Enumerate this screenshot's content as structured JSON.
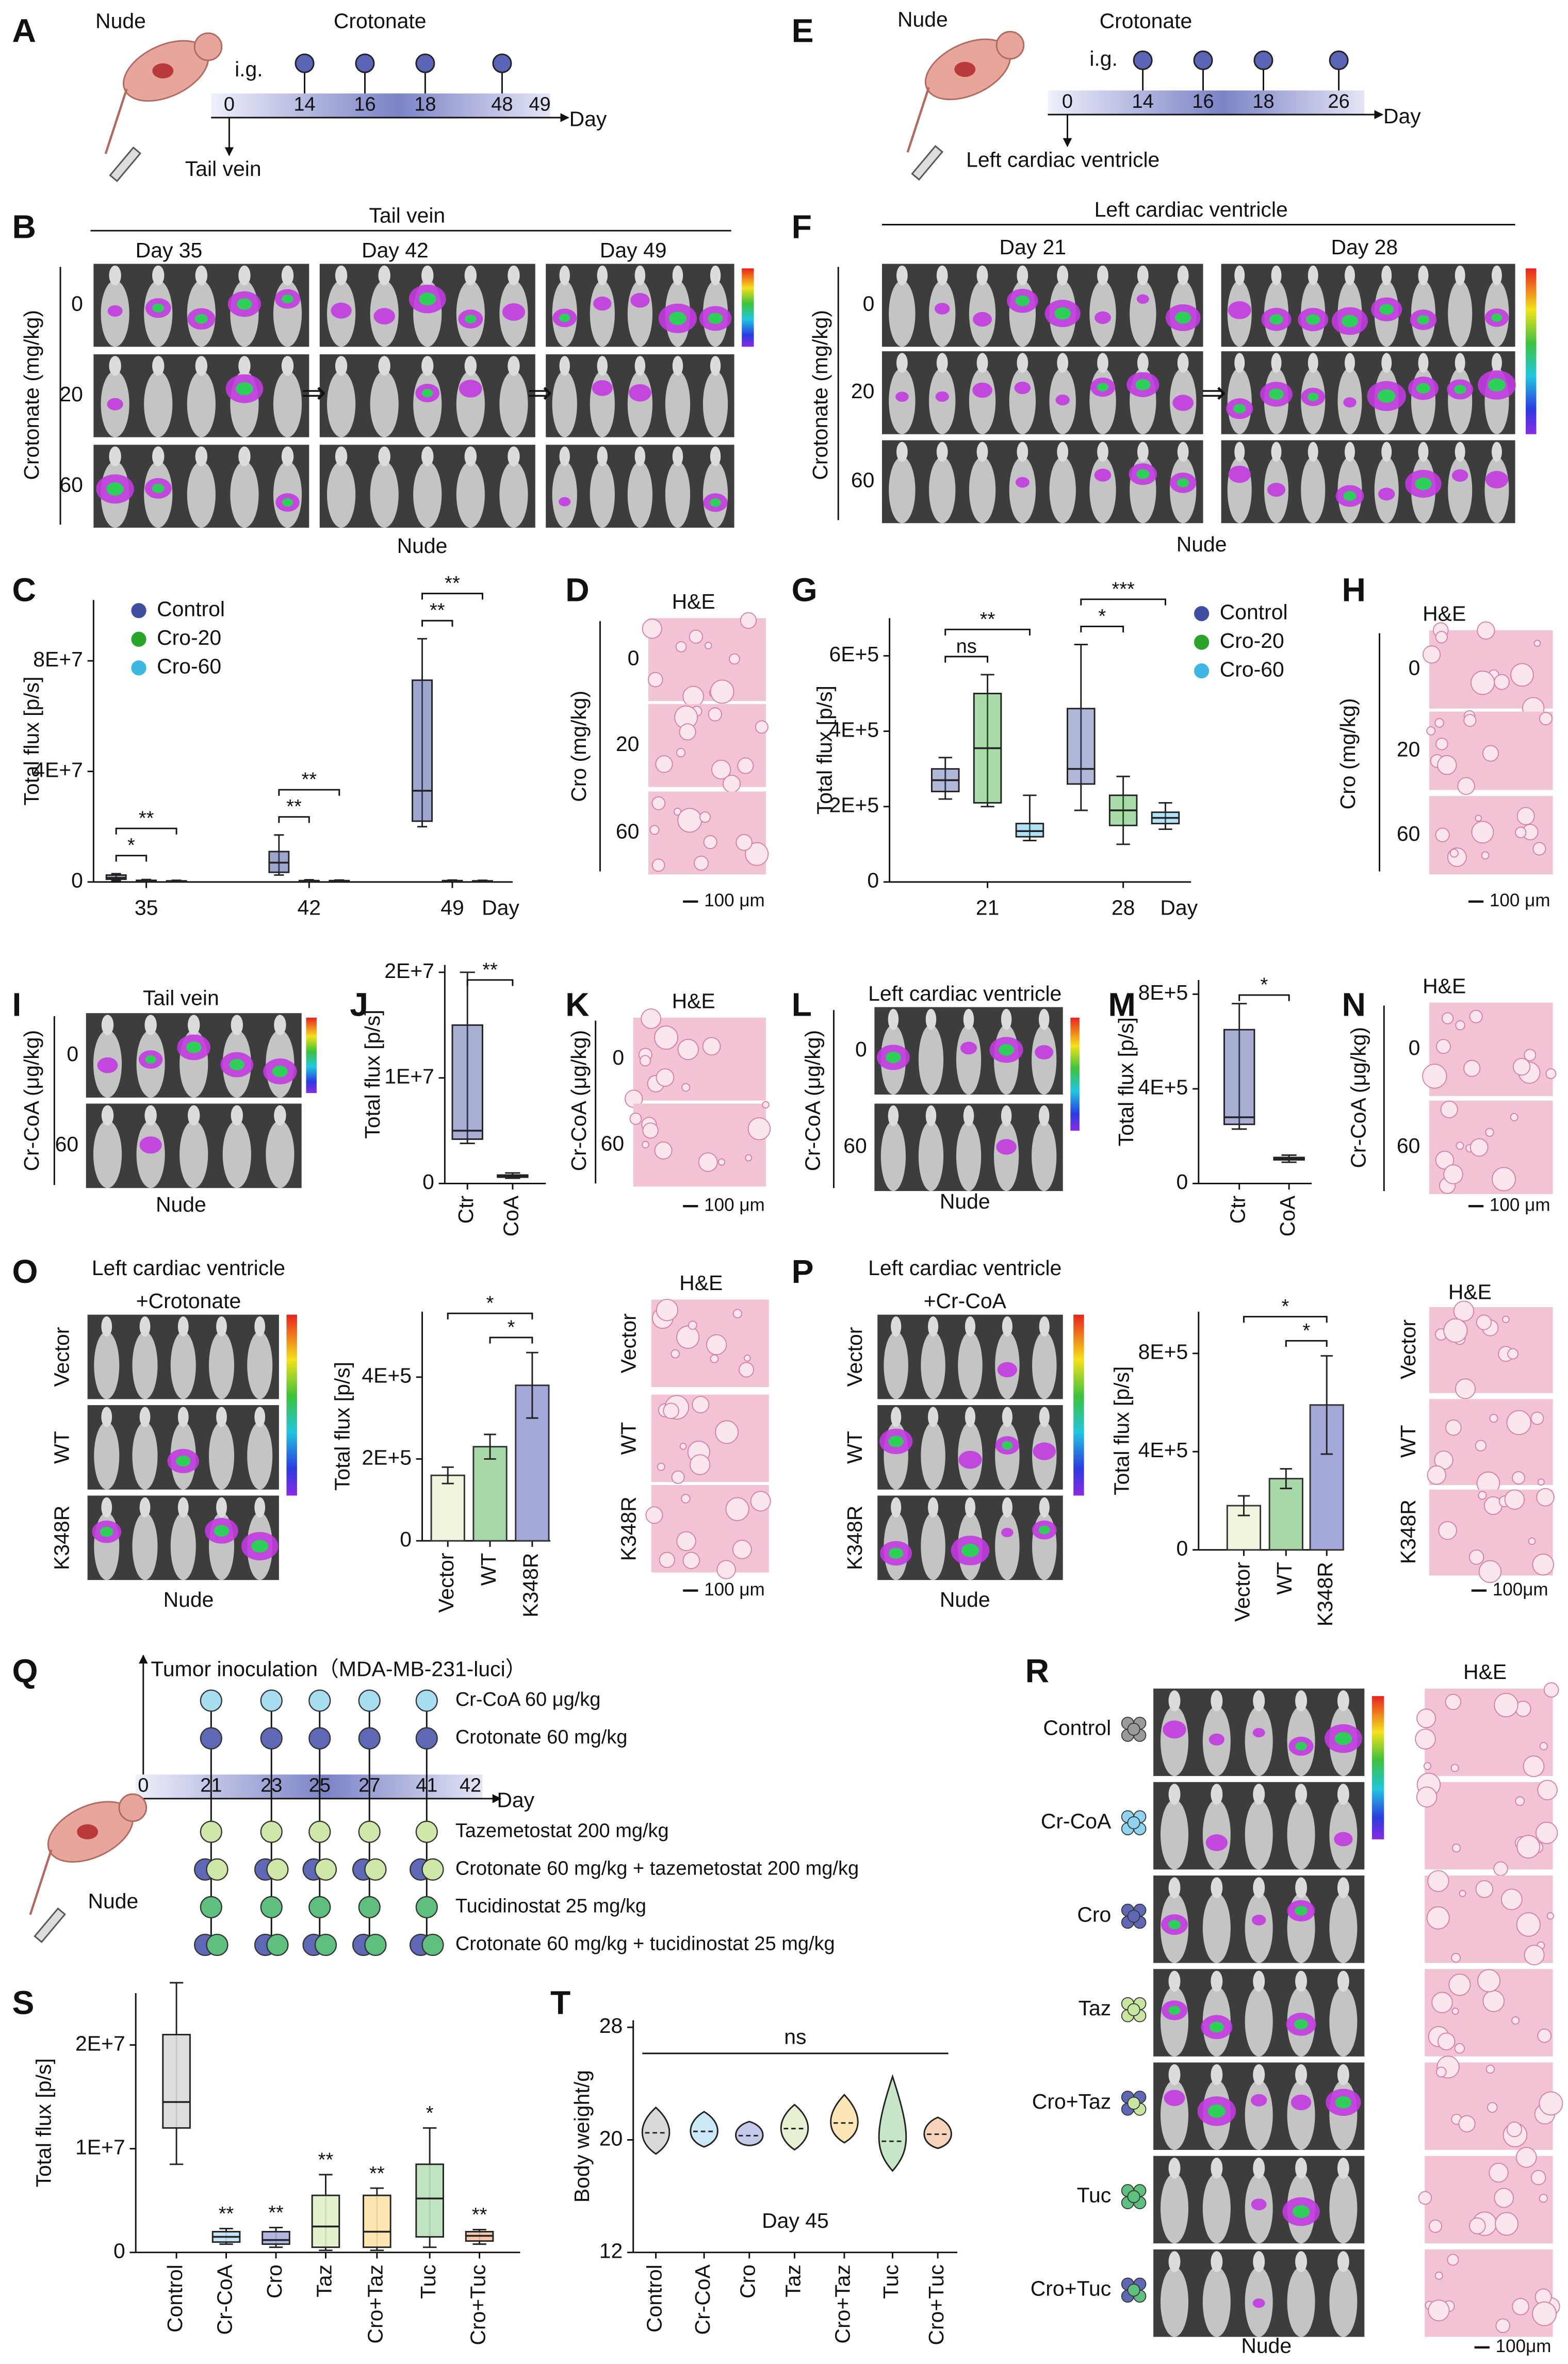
{
  "panels": {
    "A": {
      "letter": "A",
      "host": "Nude",
      "drug": "Crotonate",
      "route": "i.g.",
      "days": [
        0,
        14,
        16,
        18,
        48,
        49
      ],
      "unit": "Day",
      "injection": "Tail vein"
    },
    "B": {
      "letter": "B",
      "title": "Tail vein",
      "columns": [
        "Day 35",
        "Day 42",
        "Day 49"
      ],
      "ylabel": "Crotonate (mg/kg)",
      "rows": [
        0,
        20,
        60
      ],
      "arrow": "⇒",
      "host": "Nude"
    },
    "C": {
      "letter": "C",
      "type": "box",
      "ylabel": "Total flux [p/s]",
      "categories": [
        35,
        42,
        49
      ],
      "unit": "Day",
      "ylim": [
        0,
        102000000
      ],
      "yticks": [
        0,
        {
          "value": 40000000,
          "label": "4E+7"
        },
        {
          "value": 80000000,
          "label": "8E+7"
        }
      ],
      "series": [
        {
          "name": "Control",
          "color": "#3f4e9e",
          "boxes": [
            {
              "min": 500000,
              "q1": 1000000,
              "median": 1500000,
              "q3": 2500000,
              "max": 3000000
            },
            {
              "min": 2500000,
              "q1": 3500000,
              "median": 7000000,
              "q3": 11000000,
              "max": 17000000
            },
            {
              "min": 20000000,
              "q1": 22000000,
              "median": 33000000,
              "q3": 73000000,
              "max": 88000000
            }
          ]
        },
        {
          "name": "Cro-20",
          "color": "#2aa52a",
          "boxes": [
            {
              "min": 100000,
              "q1": 200000,
              "median": 400000,
              "q3": 600000,
              "max": 900000
            },
            {
              "min": 100000,
              "q1": 200000,
              "median": 300000,
              "q3": 500000,
              "max": 800000
            },
            {
              "min": 100000,
              "q1": 200000,
              "median": 300000,
              "q3": 500000,
              "max": 700000
            }
          ]
        },
        {
          "name": "Cro-60",
          "color": "#3fb7e3",
          "boxes": [
            {
              "min": 100000,
              "q1": 150000,
              "median": 250000,
              "q3": 400000,
              "max": 600000
            },
            {
              "min": 100000,
              "q1": 200000,
              "median": 350000,
              "q3": 500000,
              "max": 700000
            },
            {
              "min": 100000,
              "q1": 150000,
              "median": 250000,
              "q3": 400000,
              "max": 600000
            }
          ]
        }
      ],
      "significance": [
        "*",
        "**",
        "**",
        "**",
        "**",
        "**"
      ]
    },
    "D": {
      "letter": "D",
      "title": "H&E",
      "ylabel": "Cro (mg/kg)",
      "rows": [
        0,
        20,
        60
      ],
      "scale": "100 μm"
    },
    "E": {
      "letter": "E",
      "host": "Nude",
      "drug": "Crotonate",
      "route": "i.g.",
      "days": [
        0,
        14,
        16,
        18,
        26
      ],
      "unit": "Day",
      "injection": "Left cardiac ventricle"
    },
    "F": {
      "letter": "F",
      "title": "Left cardiac ventricle",
      "columns": [
        "Day 21",
        "Day 28"
      ],
      "ylabel": "Crotonate (mg/kg)",
      "rows": [
        0,
        20,
        60
      ],
      "arrow": "⇒",
      "host": "Nude"
    },
    "G": {
      "letter": "G",
      "type": "box",
      "ylabel": "Total flux [p/s]",
      "categories": [
        21,
        28
      ],
      "unit": "Day",
      "ylim": [
        0,
        700000
      ],
      "yticks": [
        0,
        {
          "value": 200000,
          "label": "2E+5"
        },
        {
          "value": 400000,
          "label": "4E+5"
        },
        {
          "value": 600000,
          "label": "6E+5"
        }
      ],
      "series": [
        {
          "name": "Control",
          "color": "#3f4e9e",
          "boxes": [
            {
              "min": 220000,
              "q1": 240000,
              "median": 270000,
              "q3": 300000,
              "max": 330000
            },
            {
              "min": 190000,
              "q1": 260000,
              "median": 300000,
              "q3": 460000,
              "max": 630000
            }
          ]
        },
        {
          "name": "Cro-20",
          "color": "#2aa52a",
          "boxes": [
            {
              "min": 200000,
              "q1": 210000,
              "median": 355000,
              "q3": 500000,
              "max": 550000
            },
            {
              "min": 100000,
              "q1": 150000,
              "median": 190000,
              "q3": 230000,
              "max": 280000
            }
          ]
        },
        {
          "name": "Cro-60",
          "color": "#3fb7e3",
          "boxes": [
            {
              "min": 110000,
              "q1": 120000,
              "median": 135000,
              "q3": 155000,
              "max": 230000
            },
            {
              "min": 140000,
              "q1": 155000,
              "median": 170000,
              "q3": 185000,
              "max": 210000
            }
          ]
        }
      ],
      "significance": [
        "ns",
        "**",
        "*",
        "***"
      ]
    },
    "H": {
      "letter": "H",
      "title": "H&E",
      "ylabel": "Cro (mg/kg)",
      "rows": [
        0,
        20,
        60
      ],
      "scale": "100 μm"
    },
    "I": {
      "letter": "I",
      "title": "Tail vein",
      "ylabel": "Cr-CoA (μg/kg)",
      "rows": [
        0,
        60
      ],
      "host": "Nude"
    },
    "J": {
      "letter": "J",
      "type": "box",
      "ylabel": "Total flux [p/s]",
      "categories": [
        "Ctr",
        "CoA"
      ],
      "ylim": [
        0,
        20700000
      ],
      "yticks": [
        0,
        {
          "value": 10000000,
          "label": "1E+7"
        },
        {
          "value": 20000000,
          "label": "2E+7"
        }
      ],
      "colors": [
        "#3f4e9e",
        "#2aa52a"
      ],
      "boxes": [
        {
          "min": 3800000,
          "q1": 4200000,
          "median": 5000000,
          "q3": 15000000,
          "max": 20000000
        },
        {
          "min": 500000,
          "q1": 600000,
          "median": 700000,
          "q3": 800000,
          "max": 1000000
        }
      ],
      "significance": [
        "**"
      ]
    },
    "K": {
      "letter": "K",
      "title": "H&E",
      "ylabel": "Cr-CoA (μg/kg)",
      "rows": [
        0,
        60
      ],
      "scale": "100 μm"
    },
    "L": {
      "letter": "L",
      "title": "Left cardiac ventricle",
      "ylabel": "Cr-CoA (μg/kg)",
      "rows": [
        0,
        60
      ],
      "host": "Nude"
    },
    "M": {
      "letter": "M",
      "type": "box",
      "ylabel": "Total flux [p/s]",
      "categories": [
        "Ctr",
        "CoA"
      ],
      "ylim": [
        0,
        860000
      ],
      "yticks": [
        0,
        {
          "value": 400000,
          "label": "4E+5"
        },
        {
          "value": 800000,
          "label": "8E+5"
        }
      ],
      "colors": [
        "#3f4e9e",
        "#2aa52a"
      ],
      "boxes": [
        {
          "min": 230000,
          "q1": 250000,
          "median": 280000,
          "q3": 650000,
          "max": 760000
        },
        {
          "min": 90000,
          "q1": 100000,
          "median": 105000,
          "q3": 110000,
          "max": 120000
        }
      ],
      "significance": [
        "*"
      ]
    },
    "N": {
      "letter": "N",
      "title": "H&E",
      "ylabel": "Cr-CoA (μg/kg)",
      "rows": [
        0,
        60
      ],
      "scale": "100 μm"
    },
    "O": {
      "letter": "O",
      "title": "Left cardiac ventricle",
      "subtitle": "+Crotonate",
      "rows": [
        "Vector",
        "WT",
        "K348R"
      ],
      "host": "Nude",
      "he_title": "H&E",
      "scale": "100 μm",
      "chart": {
        "type": "bar",
        "ylabel": "Total flux [p/s]",
        "categories": [
          "Vector",
          "WT",
          "K348R"
        ],
        "values": [
          160000,
          230000,
          380000
        ],
        "errors": [
          20000,
          30000,
          80000
        ],
        "colors": [
          "#eef5dc",
          "#a8d8a8",
          "#a3a8d8"
        ],
        "ylim": [
          0,
          560000
        ],
        "yticks": [
          0,
          {
            "value": 200000,
            "label": "2E+5"
          },
          {
            "value": 400000,
            "label": "4E+5"
          }
        ],
        "significance": [
          "*",
          "*"
        ]
      }
    },
    "P": {
      "letter": "P",
      "title": "Left cardiac ventricle",
      "subtitle": "+Cr-CoA",
      "rows": [
        "Vector",
        "WT",
        "K348R"
      ],
      "host": "Nude",
      "he_title": "H&E",
      "scale": "100μm",
      "chart": {
        "type": "bar",
        "ylabel": "Total flux [p/s]",
        "categories": [
          "Vector",
          "WT",
          "K348R"
        ],
        "values": [
          180000,
          290000,
          590000
        ],
        "errors": [
          40000,
          40000,
          200000
        ],
        "colors": [
          "#eef5dc",
          "#a8d8a8",
          "#a3a8d8"
        ],
        "ylim": [
          0,
          970000
        ],
        "yticks": [
          0,
          {
            "value": 400000,
            "label": "4E+5"
          },
          {
            "value": 800000,
            "label": "8E+5"
          }
        ],
        "significance": [
          "*",
          "*"
        ]
      }
    },
    "Q": {
      "letter": "Q",
      "title": "Tumor inoculation（MDA-MB-231-luci）",
      "days": [
        0,
        21,
        23,
        25,
        27,
        41,
        42
      ],
      "unit": "Day",
      "host": "Nude",
      "treatments": [
        "Cr-CoA 60 μg/kg",
        "Crotonate 60 mg/kg",
        "Tazemetostat 200 mg/kg",
        "Crotonate 60 mg/kg + tazemetostat 200 mg/kg",
        "Tucidinostat 25 mg/kg",
        "Crotonate 60 mg/kg + tucidinostat 25 mg/kg"
      ]
    },
    "R": {
      "letter": "R",
      "title": "H&E",
      "groups": [
        "Control",
        "Cr-CoA",
        "Cro",
        "Taz",
        "Cro+Taz",
        "Tuc",
        "Cro+Tuc"
      ],
      "host": "Nude",
      "scale": "100μm"
    },
    "S": {
      "letter": "S",
      "type": "box",
      "ylabel": "Total flux [p/s]",
      "categories": [
        "Control",
        "Cr-CoA",
        "Cro",
        "Taz",
        "Cro+Taz",
        "Tuc",
        "Cro+Tuc"
      ],
      "ylim": [
        0,
        25000000
      ],
      "yticks": [
        0,
        {
          "value": 10000000,
          "label": "1E+7"
        },
        {
          "value": 20000000,
          "label": "2E+7"
        }
      ],
      "colors": [
        "#d9d9d9",
        "#bfe3f5",
        "#a8aee0",
        "#e1efc9",
        "#fde3a8",
        "#b9e0b9",
        "#f4c0a0"
      ],
      "boxes": [
        {
          "min": 8500000,
          "q1": 12000000,
          "median": 14500000,
          "q3": 21000000,
          "max": 26000000
        },
        {
          "min": 800000,
          "q1": 1000000,
          "median": 1500000,
          "q3": 2000000,
          "max": 2300000
        },
        {
          "min": 500000,
          "q1": 800000,
          "median": 1200000,
          "q3": 2000000,
          "max": 2400000
        },
        {
          "min": 200000,
          "q1": 500000,
          "median": 2500000,
          "q3": 5500000,
          "max": 7500000
        },
        {
          "min": 200000,
          "q1": 500000,
          "median": 2000000,
          "q3": 5500000,
          "max": 6200000
        },
        {
          "min": 500000,
          "q1": 1500000,
          "median": 5200000,
          "q3": 8500000,
          "max": 12000000
        },
        {
          "min": 800000,
          "q1": 1100000,
          "median": 1600000,
          "q3": 2000000,
          "max": 2200000
        }
      ],
      "significance": [
        "**",
        "**",
        "**",
        "**",
        "*",
        "**"
      ]
    },
    "T": {
      "letter": "T",
      "type": "violin",
      "ylabel": "Body weight/g",
      "categories": [
        "Control",
        "Cr-CoA",
        "Cro",
        "Taz",
        "Cro+Taz",
        "Tuc",
        "Cro+Tuc"
      ],
      "values": [
        20.5,
        20.6,
        20.3,
        20.8,
        21.2,
        19.9,
        20.4
      ],
      "min": [
        19.0,
        19.5,
        19.6,
        19.3,
        19.8,
        17.8,
        19.4
      ],
      "max": [
        22.3,
        22.0,
        21.3,
        22.5,
        23.2,
        24.5,
        21.6
      ],
      "colors": [
        "#d9d9d9",
        "#cbe8f6",
        "#c5c9ea",
        "#e6f1d2",
        "#fce6b8",
        "#c7e6c7",
        "#f7d2bd"
      ],
      "ylim": [
        12,
        28.5
      ],
      "yticks": [
        12,
        20,
        28
      ],
      "significance": [
        "ns"
      ],
      "note": "Day 45"
    }
  }
}
